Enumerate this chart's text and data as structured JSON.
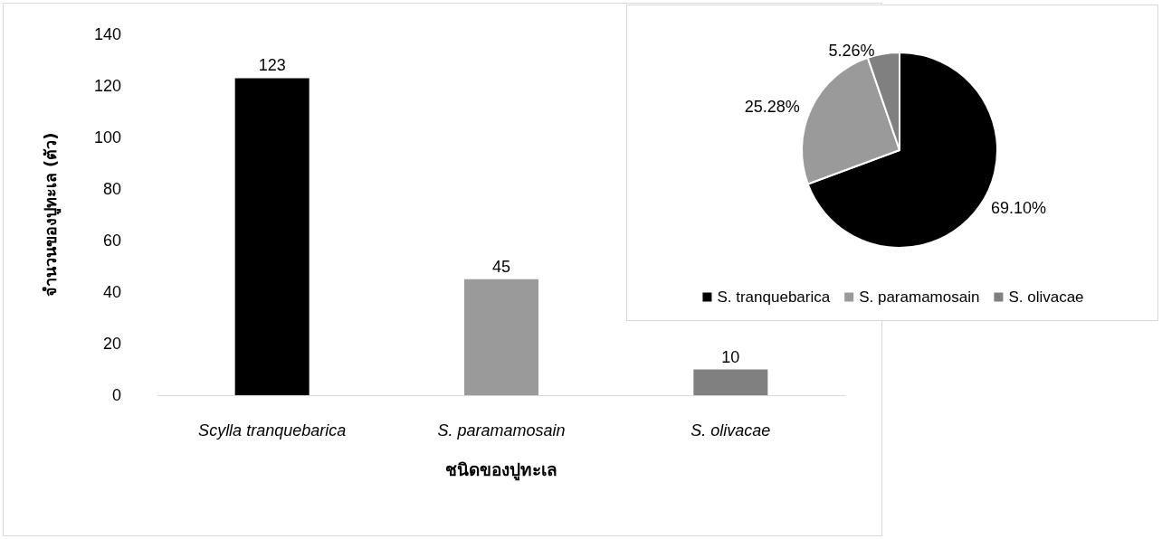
{
  "chart_data": [
    {
      "type": "bar",
      "xlabel": "ชนิดของปูทะเล",
      "ylabel": "จำนวนของปูทะเล (ตัว)",
      "categories": [
        "Scylla tranquebarica",
        "S. paramamosain",
        "S. olivacae"
      ],
      "values": [
        123,
        45,
        10
      ],
      "colors": [
        "#000000",
        "#9a9a9a",
        "#808080"
      ],
      "ylim": [
        0,
        140
      ],
      "yticks": [
        0,
        20,
        40,
        60,
        80,
        100,
        120,
        140
      ],
      "grid": false,
      "data_labels": true,
      "legend": false
    },
    {
      "type": "pie",
      "categories": [
        "S. tranquebarica",
        "S. paramamosain",
        "S. olivacae"
      ],
      "values": [
        69.1,
        25.28,
        5.26
      ],
      "value_labels": [
        "69.10%",
        "25.28%",
        "5.26%"
      ],
      "colors": [
        "#000000",
        "#9a9a9a",
        "#808080"
      ],
      "legend": "bottom"
    }
  ]
}
